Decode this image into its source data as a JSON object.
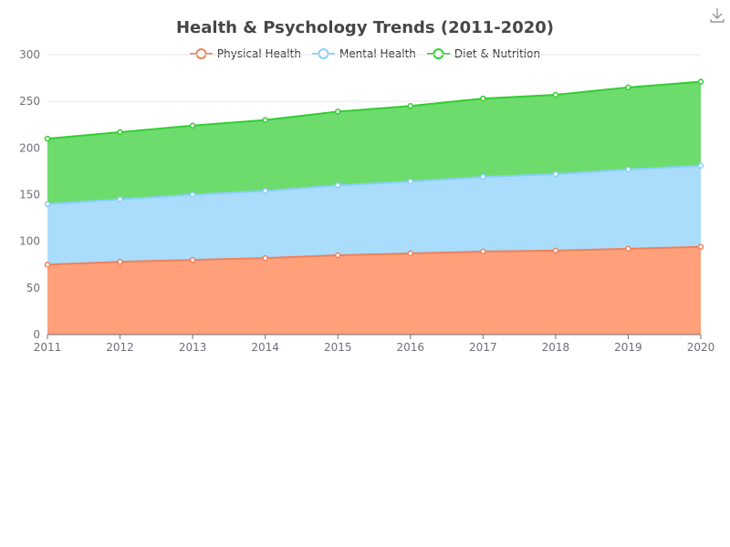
{
  "chart_data": {
    "type": "area",
    "stacked": true,
    "title": "Health & Psychology Trends (2011-2020)",
    "x": [
      "2011",
      "2012",
      "2013",
      "2014",
      "2015",
      "2016",
      "2017",
      "2018",
      "2019",
      "2020"
    ],
    "series": [
      {
        "name": "Physical Health",
        "values": [
          75,
          78,
          80,
          82,
          85,
          87,
          89,
          90,
          92,
          94
        ],
        "color": "#f0805a",
        "fill": "#ffa07a"
      },
      {
        "name": "Mental Health",
        "values": [
          65,
          67,
          70,
          72,
          75,
          77,
          80,
          82,
          85,
          87
        ],
        "color": "#87cefa",
        "fill": "#aadcfb"
      },
      {
        "name": "Diet & Nutrition",
        "values": [
          70,
          72,
          74,
          76,
          79,
          81,
          84,
          85,
          88,
          90
        ],
        "color": "#32cd32",
        "fill": "#6ddc6d"
      }
    ],
    "ylim": [
      0,
      300
    ],
    "yticks": [
      0,
      50,
      100,
      150,
      200,
      250,
      300
    ],
    "grid": true,
    "legend_position": "top-center"
  }
}
